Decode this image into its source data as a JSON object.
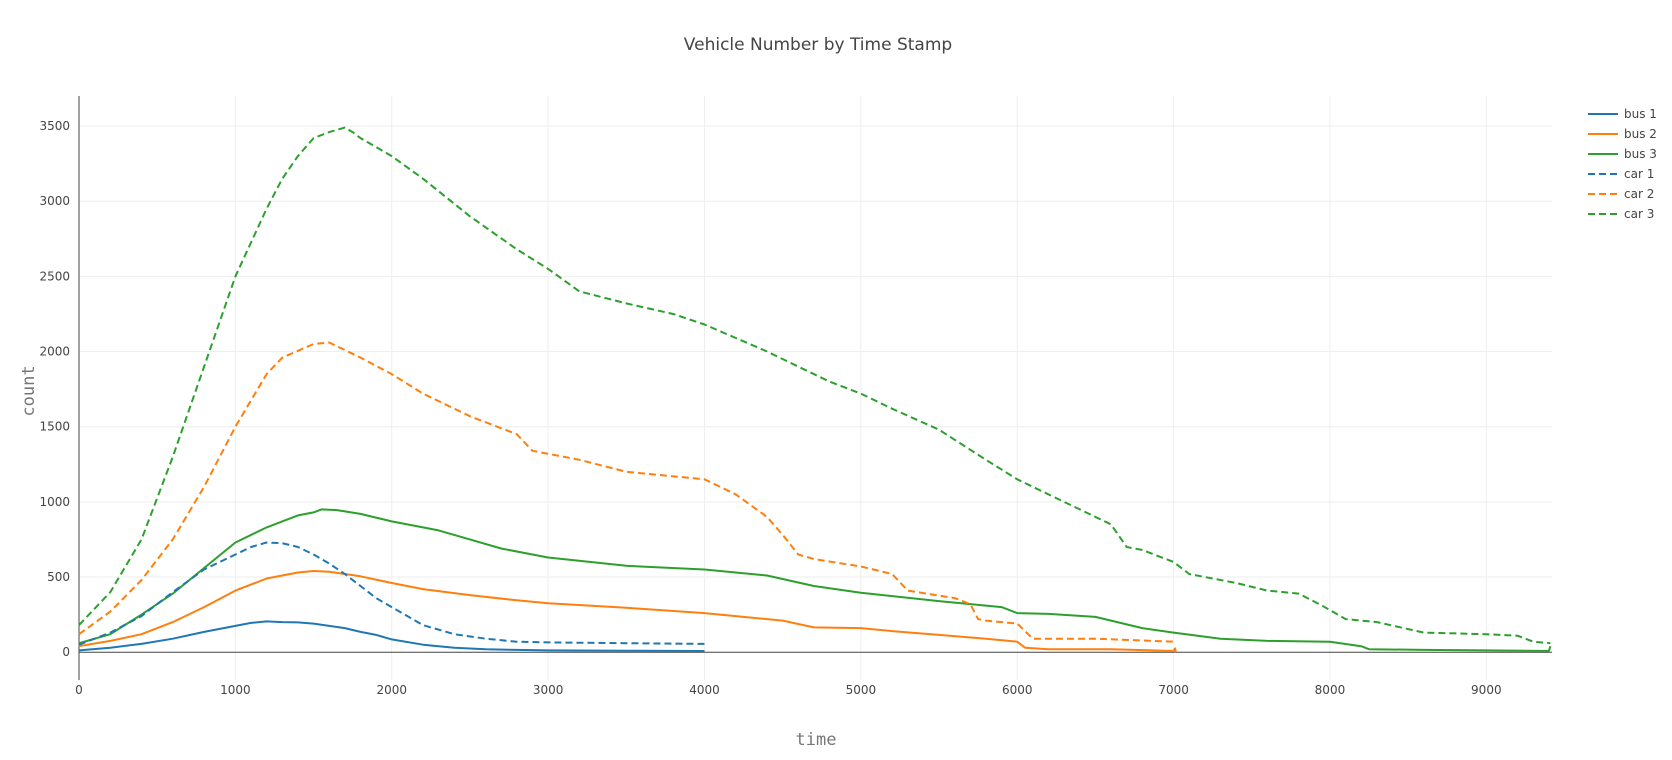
{
  "chart_data": {
    "type": "line",
    "title": "Vehicle Number by Time Stamp",
    "xlabel": "time",
    "ylabel": "count",
    "xlim": [
      0,
      9420
    ],
    "ylim": [
      -185,
      3700
    ],
    "x_ticks": [
      0,
      1000,
      2000,
      3000,
      4000,
      5000,
      6000,
      7000,
      8000,
      9000
    ],
    "y_ticks": [
      0,
      500,
      1000,
      1500,
      2000,
      2500,
      3000,
      3500
    ],
    "grid": true,
    "legend_position": "top-right",
    "series": [
      {
        "name": "bus 1",
        "color": "#1f77b4",
        "dash": "solid",
        "x": [
          0,
          200,
          400,
          600,
          800,
          1000,
          1100,
          1200,
          1300,
          1400,
          1500,
          1600,
          1700,
          1800,
          1900,
          2000,
          2200,
          2400,
          2600,
          2800,
          3000,
          3500,
          4000
        ],
        "y": [
          12,
          30,
          55,
          90,
          135,
          175,
          195,
          205,
          200,
          198,
          190,
          175,
          160,
          135,
          115,
          85,
          50,
          30,
          20,
          15,
          12,
          10,
          8
        ]
      },
      {
        "name": "bus 2",
        "color": "#ff7f0e",
        "dash": "solid",
        "x": [
          0,
          200,
          400,
          600,
          800,
          1000,
          1200,
          1400,
          1500,
          1600,
          1800,
          2000,
          2200,
          2500,
          2800,
          3000,
          3500,
          4000,
          4500,
          4700,
          5000,
          5200,
          5500,
          5800,
          6000,
          6050,
          6200,
          6600,
          7000,
          7010,
          7015
        ],
        "y": [
          40,
          75,
          120,
          200,
          300,
          410,
          490,
          530,
          540,
          535,
          505,
          460,
          420,
          380,
          345,
          325,
          295,
          260,
          210,
          165,
          160,
          140,
          115,
          90,
          70,
          30,
          20,
          20,
          8,
          25,
          0
        ]
      },
      {
        "name": "bus 3",
        "color": "#2ca02c",
        "dash": "solid",
        "x": [
          0,
          200,
          400,
          600,
          800,
          1000,
          1200,
          1400,
          1500,
          1550,
          1650,
          1800,
          2000,
          2300,
          2500,
          2700,
          3000,
          3500,
          4000,
          4400,
          4700,
          5000,
          5500,
          5900,
          6000,
          6200,
          6500,
          6800,
          7000,
          7300,
          7600,
          8000,
          8200,
          8250,
          8600,
          9000,
          9400,
          9410
        ],
        "y": [
          60,
          120,
          250,
          390,
          560,
          730,
          830,
          910,
          930,
          950,
          945,
          920,
          870,
          810,
          750,
          690,
          630,
          575,
          550,
          510,
          440,
          395,
          340,
          300,
          260,
          255,
          235,
          160,
          130,
          90,
          75,
          70,
          40,
          20,
          15,
          12,
          8,
          40
        ]
      },
      {
        "name": "car 1",
        "color": "#1f77b4",
        "dash": "dash",
        "x": [
          0,
          200,
          400,
          600,
          800,
          1000,
          1100,
          1200,
          1300,
          1400,
          1500,
          1600,
          1700,
          1800,
          1900,
          2000,
          2200,
          2400,
          2600,
          2800,
          3000,
          3500,
          4000
        ],
        "y": [
          50,
          130,
          240,
          400,
          550,
          650,
          700,
          730,
          725,
          700,
          650,
          590,
          520,
          440,
          360,
          300,
          180,
          120,
          90,
          70,
          65,
          60,
          55
        ]
      },
      {
        "name": "car 2",
        "color": "#ff7f0e",
        "dash": "dash",
        "x": [
          0,
          200,
          400,
          600,
          800,
          1000,
          1200,
          1300,
          1500,
          1600,
          1700,
          1800,
          2000,
          2200,
          2500,
          2800,
          2900,
          3000,
          3200,
          3500,
          4000,
          4200,
          4400,
          4500,
          4600,
          4700,
          5000,
          5200,
          5300,
          5600,
          5700,
          5750,
          5800,
          6000,
          6100,
          6500,
          7000
        ],
        "y": [
          120,
          270,
          480,
          750,
          1100,
          1500,
          1850,
          1960,
          2050,
          2060,
          2010,
          1960,
          1850,
          1720,
          1570,
          1450,
          1340,
          1320,
          1280,
          1200,
          1150,
          1050,
          900,
          780,
          650,
          620,
          570,
          520,
          410,
          360,
          320,
          220,
          210,
          190,
          90,
          90,
          70
        ]
      },
      {
        "name": "car 3",
        "color": "#2ca02c",
        "dash": "dash",
        "x": [
          0,
          200,
          400,
          600,
          800,
          1000,
          1200,
          1300,
          1400,
          1500,
          1600,
          1700,
          1750,
          1800,
          2000,
          2200,
          2500,
          2800,
          3000,
          3200,
          3500,
          3800,
          4000,
          4200,
          4400,
          4600,
          4800,
          5000,
          5200,
          5500,
          5800,
          6000,
          6200,
          6400,
          6600,
          6700,
          6800,
          7000,
          7100,
          7400,
          7600,
          7800,
          7950,
          8100,
          8300,
          8600,
          9000,
          9200,
          9300,
          9410
        ],
        "y": [
          180,
          400,
          750,
          1300,
          1900,
          2500,
          2950,
          3150,
          3300,
          3420,
          3460,
          3490,
          3460,
          3420,
          3300,
          3150,
          2900,
          2680,
          2550,
          2400,
          2320,
          2250,
          2180,
          2090,
          2000,
          1900,
          1800,
          1720,
          1620,
          1480,
          1280,
          1150,
          1050,
          950,
          850,
          700,
          680,
          600,
          520,
          460,
          410,
          390,
          310,
          220,
          200,
          130,
          120,
          110,
          70,
          60
        ]
      }
    ]
  }
}
